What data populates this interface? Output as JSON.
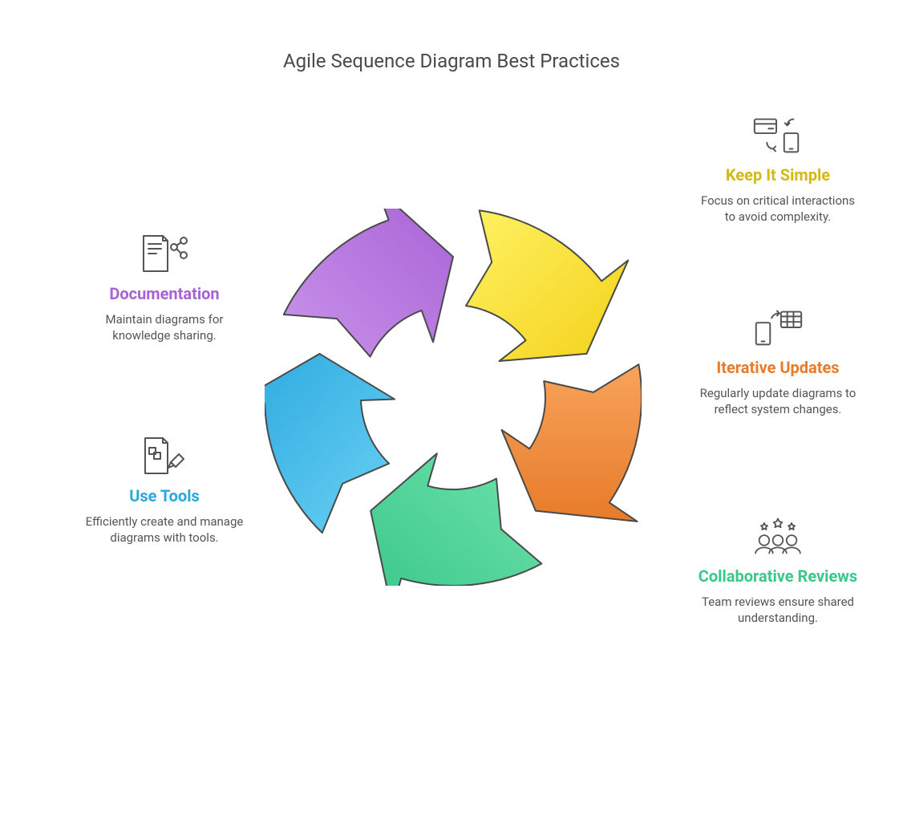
{
  "title": "Agile Sequence Diagram Best Practices",
  "cycle": {
    "type": "circular-arrow-cycle",
    "segments": 5,
    "stroke": "#4a4a4a",
    "stroke_width": 2,
    "colors": {
      "yellow_light": "#fff263",
      "yellow_dark": "#f3d11a",
      "orange_light": "#f8a35b",
      "orange_dark": "#e77b2a",
      "green_light": "#6ee3ab",
      "green_dark": "#3ac78a",
      "blue_light": "#6ad1f4",
      "blue_dark": "#2aa8de",
      "purple_light": "#c993ea",
      "purple_dark": "#a862d6"
    },
    "outer_radius": 235,
    "inner_radius": 115,
    "bg": "#ffffff"
  },
  "items": [
    {
      "key": "documentation",
      "title": "Documentation",
      "desc": "Maintain diagrams for knowledge sharing.",
      "title_color": "#a862d6",
      "icon": "doc-share-icon",
      "pos": "pos-doc"
    },
    {
      "key": "use_tools",
      "title": "Use Tools",
      "desc": "Efficiently create and manage diagrams with tools.",
      "title_color": "#2aa8de",
      "icon": "tools-icon",
      "pos": "pos-tools"
    },
    {
      "key": "keep_it_simple",
      "title": "Keep It Simple",
      "desc": "Focus on critical interactions to avoid complexity.",
      "title_color": "#d4b816",
      "icon": "simple-icon",
      "pos": "pos-simple"
    },
    {
      "key": "iterative_updates",
      "title": "Iterative Updates",
      "desc": "Regularly update diagrams to reflect system changes.",
      "title_color": "#e77b2a",
      "icon": "iterate-icon",
      "pos": "pos-iter"
    },
    {
      "key": "collaborative_reviews",
      "title": "Collaborative Reviews",
      "desc": "Team reviews ensure shared understanding.",
      "title_color": "#3ac78a",
      "icon": "team-icon",
      "pos": "pos-collab"
    }
  ],
  "typography": {
    "title_fontsize": 24,
    "item_title_fontsize": 20,
    "item_desc_fontsize": 15,
    "desc_color": "#555555",
    "icon_stroke": "#555555"
  }
}
